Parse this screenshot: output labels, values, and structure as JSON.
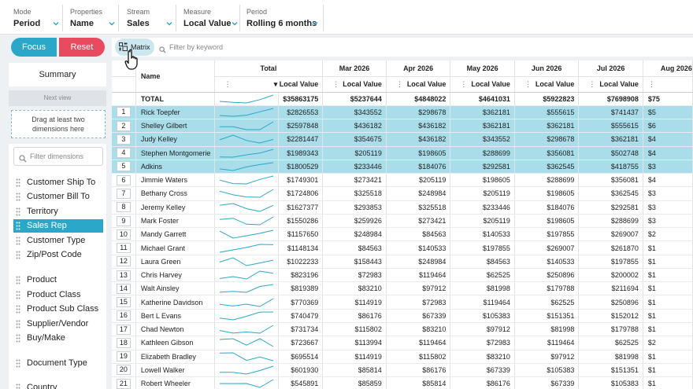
{
  "filters": [
    {
      "label": "Mode",
      "value": "Period"
    },
    {
      "label": "Properties",
      "value": "Name"
    },
    {
      "label": "Stream",
      "value": "Sales"
    },
    {
      "label": "Measure",
      "value": "Local Value"
    },
    {
      "label": "Period",
      "value": "Rolling 6 months"
    }
  ],
  "actions": {
    "focus": "Focus",
    "reset": "Reset"
  },
  "left_panel": {
    "summary": "Summary",
    "next_view": "Next view",
    "drop_hint_1": "Drag at least two",
    "drop_hint_2": "dimensions here",
    "filter_placeholder": "Filter dimensions",
    "dimensions": [
      "Customer Ship To",
      "Customer Bill To",
      "Territory",
      "Sales Rep",
      "Customer Type",
      "Zip/Post Code",
      "Product",
      "Product Class",
      "Product Sub Class",
      "Supplier/Vendor",
      "Buy/Make",
      "Document Type",
      "Country"
    ],
    "active_dimension": "Sales Rep"
  },
  "matrix": {
    "button": "Matrix",
    "keyword_placeholder": "Filter by keyword"
  },
  "grid": {
    "name_header": "Name",
    "measure_label": "Local Value",
    "columns": [
      "Total",
      "Mar 2026",
      "Apr 2026",
      "May 2026",
      "Jun 2026",
      "Jul 2026",
      "Aug 2026"
    ],
    "total_row": {
      "name": "TOTAL",
      "values": [
        "$35863175",
        "$5237644",
        "$4848022",
        "$4641031",
        "$5922823",
        "$7698908",
        "$75"
      ]
    },
    "rows": [
      {
        "n": "1",
        "name": "Rick Toepfer",
        "values": [
          "$2826553",
          "$343552",
          "$298678",
          "$362181",
          "$555615",
          "$741437",
          "$5"
        ],
        "sel": true
      },
      {
        "n": "2",
        "name": "Shelley Gilbert",
        "values": [
          "$2597848",
          "$436182",
          "$436182",
          "$362181",
          "$362181",
          "$555615",
          "$6"
        ],
        "sel": true
      },
      {
        "n": "3",
        "name": "Judy Kelley",
        "values": [
          "$2281447",
          "$354675",
          "$436182",
          "$343552",
          "$298678",
          "$362181",
          "$4"
        ],
        "sel": true
      },
      {
        "n": "4",
        "name": "Stephen Montgomerie",
        "values": [
          "$1989343",
          "$205119",
          "$198605",
          "$288699",
          "$356081",
          "$502748",
          "$4"
        ],
        "sel": true
      },
      {
        "n": "5",
        "name": "Adkins",
        "values": [
          "$1800529",
          "$233446",
          "$184076",
          "$292581",
          "$362545",
          "$418755",
          "$3"
        ],
        "sel": true
      },
      {
        "n": "6",
        "name": "Jimmie Waters",
        "values": [
          "$1749301",
          "$273421",
          "$205119",
          "$198605",
          "$288699",
          "$356081",
          "$4"
        ],
        "sel": false
      },
      {
        "n": "7",
        "name": "Bethany Cross",
        "values": [
          "$1724806",
          "$325518",
          "$248984",
          "$205119",
          "$198605",
          "$362545",
          "$3"
        ],
        "sel": false
      },
      {
        "n": "8",
        "name": "Jeremy Kelley",
        "values": [
          "$1627377",
          "$293853",
          "$325518",
          "$233446",
          "$184076",
          "$292581",
          "$3"
        ],
        "sel": false
      },
      {
        "n": "9",
        "name": "Mark Foster",
        "values": [
          "$1550286",
          "$259926",
          "$273421",
          "$205119",
          "$198605",
          "$288699",
          "$3"
        ],
        "sel": false
      },
      {
        "n": "10",
        "name": "Mandy Garrett",
        "values": [
          "$1157650",
          "$248984",
          "$84563",
          "$140533",
          "$197855",
          "$269007",
          "$2"
        ],
        "sel": false
      },
      {
        "n": "11",
        "name": "Michael Grant",
        "values": [
          "$1148134",
          "$84563",
          "$140533",
          "$197855",
          "$269007",
          "$261870",
          "$1"
        ],
        "sel": false
      },
      {
        "n": "12",
        "name": "Laura Green",
        "values": [
          "$1022233",
          "$158443",
          "$248984",
          "$84563",
          "$140533",
          "$197855",
          "$1"
        ],
        "sel": false
      },
      {
        "n": "13",
        "name": "Chris Harvey",
        "values": [
          "$823196",
          "$72983",
          "$119464",
          "$62525",
          "$250896",
          "$200002",
          "$1"
        ],
        "sel": false
      },
      {
        "n": "14",
        "name": "Walt Ainsley",
        "values": [
          "$819389",
          "$83210",
          "$97912",
          "$81998",
          "$179788",
          "$211694",
          "$1"
        ],
        "sel": false
      },
      {
        "n": "15",
        "name": "Katherine Davidson",
        "values": [
          "$770369",
          "$114919",
          "$72983",
          "$119464",
          "$62525",
          "$250896",
          "$1"
        ],
        "sel": false
      },
      {
        "n": "16",
        "name": "Bert L Evans",
        "values": [
          "$740479",
          "$86176",
          "$67339",
          "$105383",
          "$151351",
          "$152012",
          "$1"
        ],
        "sel": false
      },
      {
        "n": "17",
        "name": "Chad Newton",
        "values": [
          "$731734",
          "$115802",
          "$83210",
          "$97912",
          "$81998",
          "$179788",
          "$1"
        ],
        "sel": false
      },
      {
        "n": "18",
        "name": "Kathleen Gibson",
        "values": [
          "$723667",
          "$113994",
          "$119464",
          "$72983",
          "$119464",
          "$62525",
          "$2"
        ],
        "sel": false
      },
      {
        "n": "19",
        "name": "Elizabeth Bradley",
        "values": [
          "$695514",
          "$114919",
          "$115802",
          "$83210",
          "$97912",
          "$81998",
          "$1"
        ],
        "sel": false
      },
      {
        "n": "20",
        "name": "Lowell Walker",
        "values": [
          "$601930",
          "$85814",
          "$86176",
          "$67339",
          "$105383",
          "$151351",
          "$1"
        ],
        "sel": false
      },
      {
        "n": "21",
        "name": "Robert Wheeler",
        "values": [
          "$545891",
          "$85859",
          "$85814",
          "$86176",
          "$67339",
          "$105383",
          "$1"
        ],
        "sel": false
      }
    ]
  },
  "colors": {
    "accent": "#2aa7c9",
    "reset": "#e84a5f",
    "selected_row": "#a9dde9",
    "sparkline": "#2aa7c9"
  },
  "icons": [
    "chevron-down-icon",
    "grip-icon",
    "search-icon",
    "matrix-icon",
    "hand-cursor-icon",
    "kebab-icon",
    "sort-down-icon"
  ]
}
